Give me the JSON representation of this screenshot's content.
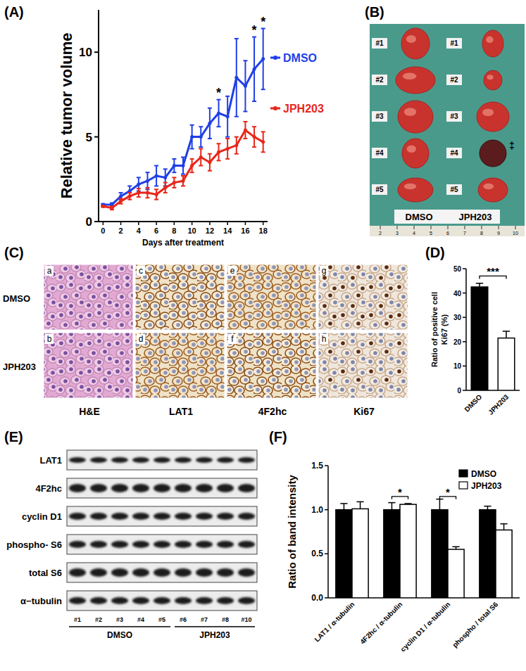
{
  "figure": {
    "panel_labels": [
      "(A)",
      "(B)",
      "(C)",
      "(D)",
      "(E)",
      "(F)"
    ],
    "tumor_photo": {
      "groups": [
        "DMSO",
        "JPH203"
      ],
      "tumor_labels": [
        "#1",
        "#2",
        "#3",
        "#4",
        "#5"
      ],
      "marker": {
        "text": "‡",
        "group": "JPH203",
        "tumor": "#4"
      },
      "ruler": [
        "2",
        "3",
        "4",
        "5",
        "6",
        "7",
        "8",
        "9",
        "10"
      ]
    },
    "micrographs": {
      "rows": [
        "DMSO",
        "JPH203"
      ],
      "columns": [
        "H&E",
        "LAT1",
        "4F2hc",
        "Ki67"
      ],
      "letters": [
        [
          "a",
          "c",
          "e",
          "g"
        ],
        [
          "b",
          "d",
          "f",
          "h"
        ]
      ]
    },
    "western_blot": {
      "rows": [
        "LAT1",
        "4F2hc",
        "cyclin D1",
        "phospho- S6",
        "total S6",
        "α−tubulin"
      ],
      "lanes": [
        "#1",
        "#2",
        "#3",
        "#4",
        "#5",
        "#6",
        "#7",
        "#8",
        "#10"
      ],
      "groups": [
        {
          "label": "DMSO",
          "lanes": 5
        },
        {
          "label": "JPH203",
          "lanes": 4
        }
      ]
    }
  },
  "chart_data": [
    {
      "type": "line",
      "x_label": "Days after treatment",
      "y_label": "Relative tumor volume",
      "x": [
        0,
        1,
        2,
        3,
        4,
        5,
        6,
        7,
        8,
        9,
        10,
        11,
        12,
        13,
        14,
        15,
        16,
        17,
        18
      ],
      "xlim": [
        -0.5,
        18.5
      ],
      "xticks": [
        0,
        2,
        4,
        6,
        8,
        10,
        12,
        14,
        16,
        18
      ],
      "ylim": [
        0,
        12.5
      ],
      "yticks": [
        0,
        5,
        10
      ],
      "legend": "right",
      "series": [
        {
          "name": "DMSO",
          "color": "#1f3fe6",
          "marker": "circle",
          "line_style": "solid",
          "values": [
            1.0,
            1.0,
            1.5,
            1.8,
            2.2,
            2.4,
            2.7,
            2.6,
            3.3,
            3.3,
            5.0,
            5.0,
            5.8,
            6.4,
            6.2,
            8.5,
            8.0,
            9.0,
            9.6
          ],
          "errors": [
            0.05,
            0.1,
            0.2,
            0.3,
            0.4,
            0.5,
            0.6,
            0.5,
            0.4,
            0.5,
            0.7,
            0.6,
            0.9,
            0.8,
            1.2,
            2.3,
            1.5,
            1.9,
            1.8
          ]
        },
        {
          "name": "JPH203",
          "color": "#e8261a",
          "marker": "circle",
          "line_style": "solid",
          "values": [
            0.9,
            0.8,
            1.2,
            1.5,
            1.7,
            1.7,
            1.6,
            2.0,
            2.3,
            2.4,
            3.3,
            3.8,
            3.5,
            4.1,
            4.3,
            4.5,
            5.4,
            5.0,
            4.7
          ],
          "errors": [
            0.05,
            0.1,
            0.15,
            0.2,
            0.25,
            0.3,
            0.3,
            0.3,
            0.3,
            0.3,
            0.4,
            0.5,
            0.5,
            0.5,
            0.6,
            0.5,
            0.5,
            0.6,
            0.6
          ]
        }
      ],
      "annotations": [
        {
          "x": 13,
          "y": 7.6,
          "text": "*"
        },
        {
          "x": 17,
          "y": 11.3,
          "text": "*"
        },
        {
          "x": 18,
          "y": 11.8,
          "text": "*"
        }
      ]
    },
    {
      "type": "bar",
      "y_label": [
        "Ratio of  positive cell",
        "Ki67 (%)"
      ],
      "categories": [
        "DMSO",
        "JPH203"
      ],
      "values": [
        42.5,
        21.5
      ],
      "errors": [
        1.5,
        2.8
      ],
      "colors": [
        "#000000",
        "#ffffff"
      ],
      "ylim": [
        0,
        50
      ],
      "yticks": [
        0,
        10,
        20,
        30,
        40,
        50
      ],
      "annotations": [
        {
          "text": "***",
          "between": [
            0,
            1
          ],
          "y": 47
        }
      ]
    },
    {
      "type": "bar",
      "y_label": "Ratio of band intensity",
      "categories": [
        "LAT1 / α-tubulin",
        "4F2hc / α-tubulin",
        "cyclin D1 / α-tubulin",
        "phospho / total S6"
      ],
      "ylim": [
        0,
        1.5
      ],
      "yticks": [
        {
          "value": 0,
          "label": "0.0"
        },
        {
          "value": 0.5,
          "label": "0.5"
        },
        {
          "value": 1,
          "label": "1.0"
        },
        {
          "value": 1.5,
          "label": "1.5"
        }
      ],
      "legend": "top-right",
      "series": [
        {
          "name": "DMSO",
          "color": "#000000",
          "values": [
            1.0,
            1.0,
            1.0,
            1.0
          ],
          "errors": [
            0.07,
            0.08,
            0.12,
            0.04
          ]
        },
        {
          "name": "JPH203",
          "color": "#ffffff",
          "values": [
            1.01,
            1.06,
            0.55,
            0.77
          ],
          "errors": [
            0.08,
            0.01,
            0.03,
            0.07
          ]
        }
      ],
      "annotations": [
        {
          "text": "*",
          "category": 1,
          "y": 1.15
        },
        {
          "text": "*",
          "category": 2,
          "y": 1.15
        }
      ]
    }
  ]
}
